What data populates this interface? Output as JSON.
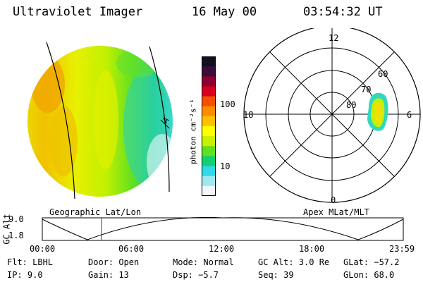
{
  "header": {
    "instrument": "Ultraviolet Imager",
    "date": "16 May 00",
    "time": "03:54:32 UT"
  },
  "left_panel": {
    "caption": "Geographic Lat/Lon",
    "limb_letter": "A"
  },
  "colorbar": {
    "unit_label": "photon cm⁻²s⁻¹",
    "ticks": [
      "100",
      "10"
    ],
    "colors": [
      "#101020",
      "#3a0d3a",
      "#8a0030",
      "#d40020",
      "#f05000",
      "#ff8c00",
      "#ffc000",
      "#ffff00",
      "#c8f000",
      "#60e020",
      "#10d070",
      "#30d8e8",
      "#a0e8f0",
      "#f0f8ff"
    ]
  },
  "polar_plot": {
    "caption": "Apex MLat/MLT",
    "mlt_labels": {
      "top": "12",
      "left": "18",
      "right": "6",
      "bottom": "0"
    },
    "lat_labels": [
      "60",
      "70",
      "80"
    ]
  },
  "altitude_plot": {
    "ylabel": "GC Alt",
    "yticks": [
      "9.0",
      "1.8"
    ],
    "xticks": [
      "00:00",
      "06:00",
      "12:00",
      "18:00",
      "23:59"
    ]
  },
  "info": {
    "row1": {
      "flt": "Flt: LBHL",
      "door": "Door: Open",
      "mode": "Mode: Normal",
      "gcalt": "GC Alt: 3.0 Re",
      "glat": "GLat: −57.2"
    },
    "row2": {
      "ip": "IP:  9.0",
      "gain": "Gain: 13",
      "dsp": "Dsp:    −5.7",
      "seq": "Seq: 39",
      "glon": "GLon:  68.0"
    }
  }
}
